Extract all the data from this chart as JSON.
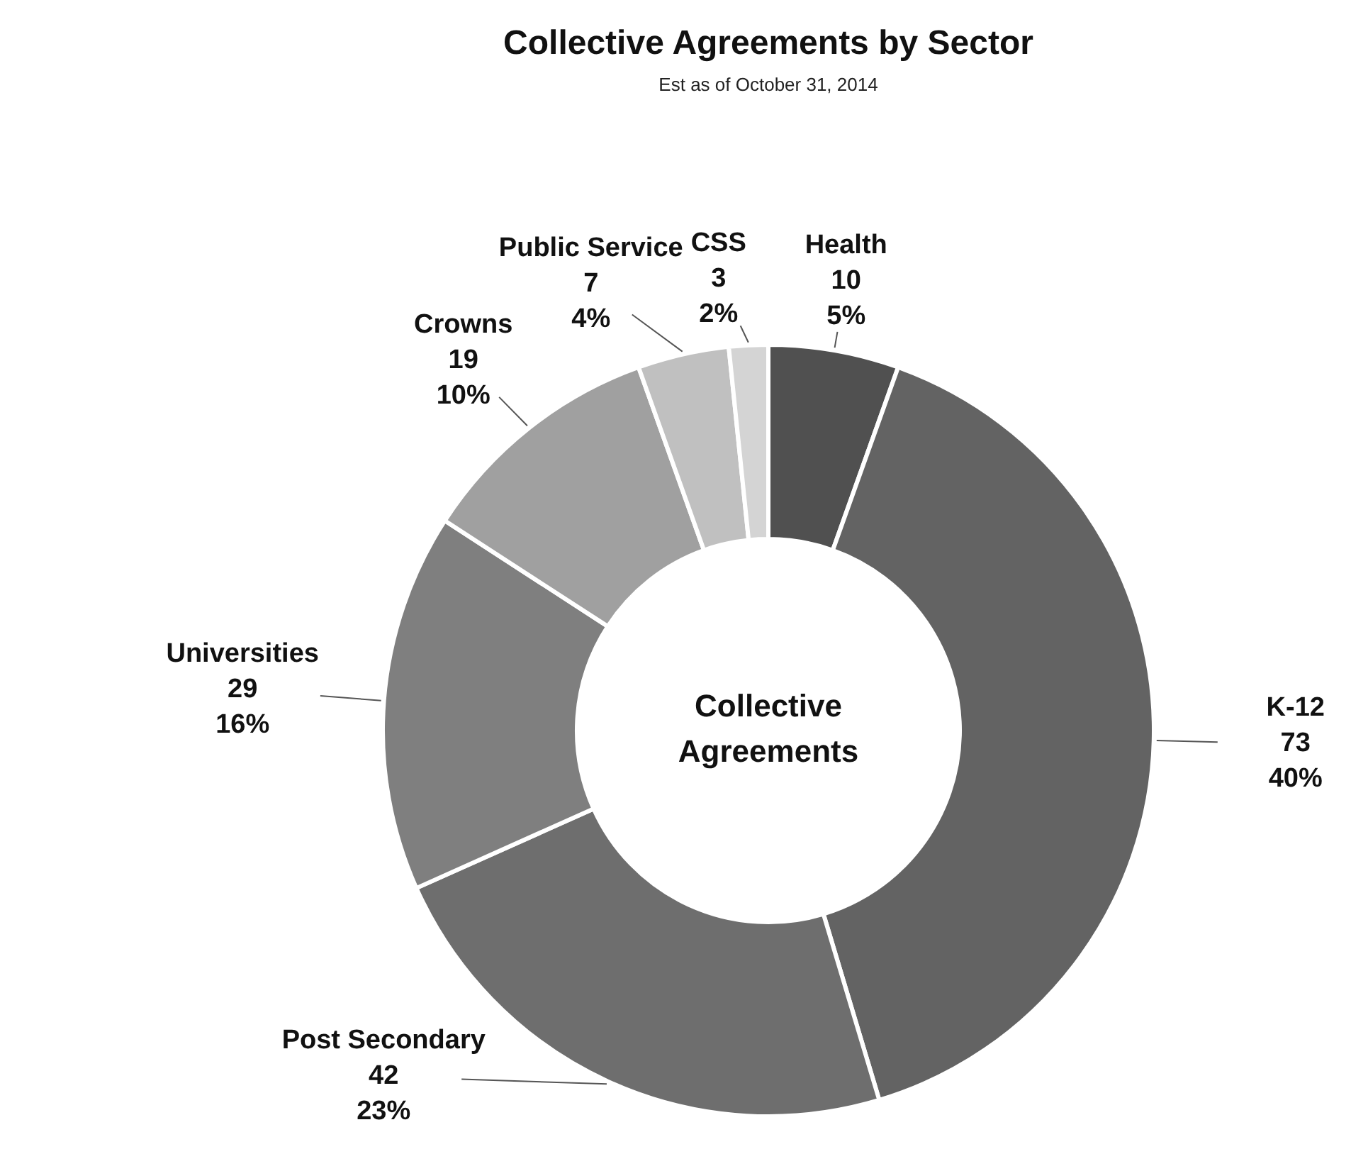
{
  "chart_data": {
    "type": "donut",
    "title": "Collective Agreements by Sector",
    "subtitle": "Est as of October 31, 2014",
    "categories": [
      "Health",
      "K-12",
      "Post Secondary",
      "Universities",
      "Crowns",
      "Public Service",
      "CSS"
    ],
    "values": [
      10,
      73,
      42,
      29,
      19,
      7,
      3
    ],
    "colors": [
      "#505050",
      "#636363",
      "#6e6e6e",
      "#7f7f7f",
      "#a0a0a0",
      "#c0c0c0",
      "#d4d4d4"
    ],
    "value_labels": [
      "10\n5%",
      "73\n40%",
      "42\n23%",
      "29\n16%",
      "19\n10%",
      "7\n4%",
      "3\n2%"
    ],
    "annotations": [
      "Collective Agreements"
    ],
    "legend": false
  }
}
